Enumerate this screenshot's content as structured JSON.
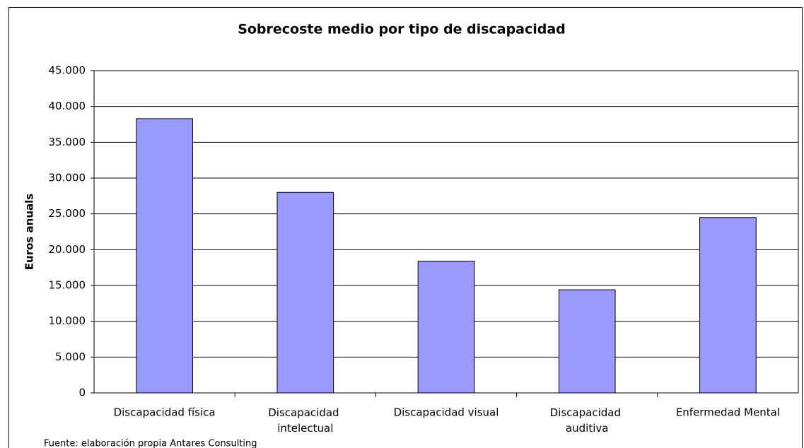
{
  "chart_data": {
    "type": "bar",
    "title": "Sobrecoste medio por tipo de discapacidad",
    "y_label": "Euros anuals",
    "source": "Fuente: elaboración propia Antares Consulting",
    "categories": [
      "Discapacidad física",
      "Discapacidad\nintelectual",
      "Discapacidad visual",
      "Discapacidad\nauditiva",
      "Enfermedad Mental"
    ],
    "values": [
      38300,
      28000,
      18400,
      14400,
      24500
    ],
    "color": "#9999ff",
    "ylim": [
      0,
      45000
    ],
    "yticks": [
      0,
      {
        "value": 5000,
        "label": "5.000"
      },
      {
        "value": 10000,
        "label": "10.000"
      },
      {
        "value": 15000,
        "label": "15.000"
      },
      {
        "value": 20000,
        "label": "20.000"
      },
      {
        "value": 25000,
        "label": "25.000"
      },
      {
        "value": 30000,
        "label": "30.000"
      },
      {
        "value": 35000,
        "label": "35.000"
      },
      {
        "value": 40000,
        "label": "40.000"
      },
      {
        "value": 45000,
        "label": "45.000"
      }
    ],
    "grid": true
  }
}
